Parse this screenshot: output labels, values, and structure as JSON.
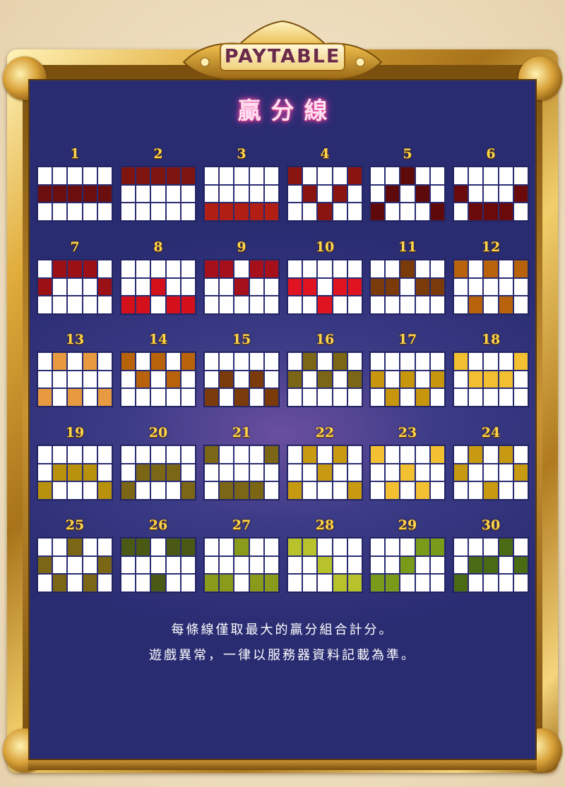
{
  "header": {
    "plaque_title": "PAYTABLE"
  },
  "section_title": "贏分線",
  "footer": {
    "line1": "每條線僅取最大的贏分組合計分。",
    "line2": "遊戲異常，一律以服務器資料記載為準。"
  },
  "colors": {
    "panel": "#2e2f77",
    "gold": "#d9a23a",
    "number": "#ffd54a",
    "title_glow": "#ff5fb0"
  },
  "paylines": [
    {
      "number": "1",
      "rows": [
        1,
        1,
        1,
        1,
        1
      ],
      "color": "#6b0e0e"
    },
    {
      "number": "2",
      "rows": [
        0,
        0,
        0,
        0,
        0
      ],
      "color": "#7d1410"
    },
    {
      "number": "3",
      "rows": [
        2,
        2,
        2,
        2,
        2
      ],
      "color": "#b01e14"
    },
    {
      "number": "4",
      "rows": [
        0,
        1,
        2,
        1,
        0
      ],
      "color": "#8a1510"
    },
    {
      "number": "5",
      "rows": [
        2,
        1,
        0,
        1,
        2
      ],
      "color": "#5e0a0a"
    },
    {
      "number": "6",
      "rows": [
        1,
        2,
        2,
        2,
        1
      ],
      "color": "#6a0a0a"
    },
    {
      "number": "7",
      "rows": [
        1,
        0,
        0,
        0,
        1
      ],
      "color": "#9a1014"
    },
    {
      "number": "8",
      "rows": [
        2,
        2,
        1,
        2,
        2
      ],
      "color": "#d4101a"
    },
    {
      "number": "9",
      "rows": [
        0,
        0,
        1,
        0,
        0
      ],
      "color": "#a5101a"
    },
    {
      "number": "10",
      "rows": [
        1,
        1,
        2,
        1,
        1
      ],
      "color": "#e01420"
    },
    {
      "number": "11",
      "rows": [
        1,
        1,
        0,
        1,
        1
      ],
      "color": "#7a3a0a"
    },
    {
      "number": "12",
      "rows": [
        0,
        2,
        0,
        2,
        0
      ],
      "color": "#b8620c"
    },
    {
      "number": "13",
      "rows": [
        2,
        0,
        2,
        0,
        2
      ],
      "color": "#e89a40"
    },
    {
      "number": "14",
      "rows": [
        0,
        1,
        0,
        1,
        0
      ],
      "color": "#b8620c"
    },
    {
      "number": "15",
      "rows": [
        2,
        1,
        2,
        1,
        2
      ],
      "color": "#7a3a0a"
    },
    {
      "number": "16",
      "rows": [
        1,
        0,
        1,
        0,
        1
      ],
      "color": "#7a6614"
    },
    {
      "number": "17",
      "rows": [
        1,
        2,
        1,
        2,
        1
      ],
      "color": "#c8960c"
    },
    {
      "number": "18",
      "rows": [
        0,
        1,
        1,
        1,
        0
      ],
      "color": "#f2c030"
    },
    {
      "number": "19",
      "rows": [
        2,
        1,
        1,
        1,
        2
      ],
      "color": "#b8920c"
    },
    {
      "number": "20",
      "rows": [
        2,
        1,
        1,
        1,
        2
      ],
      "color": "#7a6614"
    },
    {
      "number": "21",
      "rows": [
        0,
        2,
        2,
        2,
        0
      ],
      "color": "#7a6614"
    },
    {
      "number": "22",
      "rows": [
        2,
        0,
        1,
        0,
        2
      ],
      "color": "#c89a12"
    },
    {
      "number": "23",
      "rows": [
        0,
        2,
        1,
        2,
        0
      ],
      "color": "#f2c030"
    },
    {
      "number": "24",
      "rows": [
        1,
        0,
        2,
        0,
        1
      ],
      "color": "#c89a12"
    },
    {
      "number": "25",
      "rows": [
        1,
        2,
        0,
        2,
        1
      ],
      "color": "#7a6614"
    },
    {
      "number": "26",
      "rows": [
        0,
        0,
        2,
        0,
        0
      ],
      "color": "#4a5a14"
    },
    {
      "number": "27",
      "rows": [
        2,
        2,
        0,
        2,
        2
      ],
      "color": "#8a9a1a"
    },
    {
      "number": "28",
      "rows": [
        0,
        0,
        1,
        2,
        2
      ],
      "color": "#b8c22a"
    },
    {
      "number": "29",
      "rows": [
        2,
        2,
        1,
        0,
        0
      ],
      "color": "#7a9a1a"
    },
    {
      "number": "30",
      "rows": [
        2,
        1,
        1,
        0,
        1
      ],
      "color": "#4a6a14"
    }
  ]
}
